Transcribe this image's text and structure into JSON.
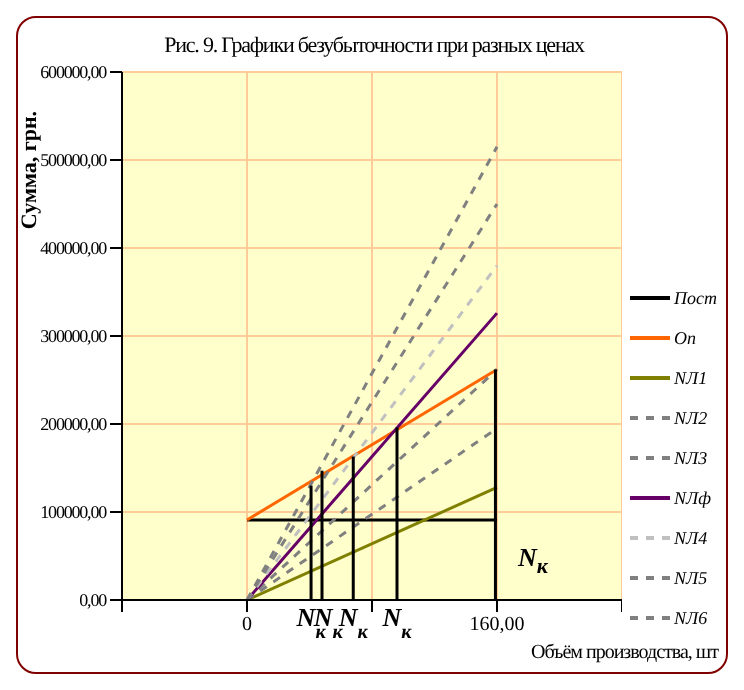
{
  "chart_data": {
    "type": "line",
    "title": "Рис. 9. Графики безубыточности при разных ценах",
    "xlabel": "Объём производства, шт",
    "ylabel": "Сумма, грн.",
    "xlim": [
      -80,
      240
    ],
    "xticks": [
      {
        "value": -80,
        "label": null
      },
      {
        "value": 0,
        "label": "0"
      },
      {
        "value": 80,
        "label": null
      },
      {
        "value": 160,
        "label": "160,00"
      },
      {
        "value": 240,
        "label": null
      }
    ],
    "ylim": [
      0,
      600000
    ],
    "yticks": [
      {
        "value": 0,
        "label": "0,00"
      },
      {
        "value": 100000,
        "label": "100000,00"
      },
      {
        "value": 200000,
        "label": "200000,00"
      },
      {
        "value": 300000,
        "label": "300000,00"
      },
      {
        "value": 400000,
        "label": "400000,00"
      },
      {
        "value": 500000,
        "label": "500000,00"
      },
      {
        "value": 600000,
        "label": "600000,00"
      }
    ],
    "grid": true,
    "legend": "right",
    "marker": "none",
    "series": [
      {
        "name": "Пост",
        "color": "#000000",
        "x": [
          0,
          160
        ],
        "values": [
          91000,
          91000
        ],
        "line_style": "solid"
      },
      {
        "name": "Оп",
        "color": "#ff6600",
        "x": [
          0,
          160
        ],
        "values": [
          91000,
          262000
        ],
        "line_style": "solid"
      },
      {
        "name": "NЛ1",
        "color": "#808000",
        "x": [
          0,
          160
        ],
        "values": [
          0,
          128000
        ],
        "line_style": "solid"
      },
      {
        "name": "NЛ2",
        "color": "#808080",
        "x": [
          0,
          160
        ],
        "values": [
          0,
          195000
        ],
        "line_style": "dashed"
      },
      {
        "name": "NЛ3",
        "color": "#808080",
        "x": [
          0,
          160
        ],
        "values": [
          0,
          262000
        ],
        "line_style": "dashed"
      },
      {
        "name": "NЛф",
        "color": "#660066",
        "x": [
          0,
          160
        ],
        "values": [
          0,
          326000
        ],
        "line_style": "solid"
      },
      {
        "name": "NЛ4",
        "color": "#c0c0c0",
        "x": [
          0,
          160
        ],
        "values": [
          0,
          380000
        ],
        "line_style": "dashed"
      },
      {
        "name": "NЛ5",
        "color": "#808080",
        "x": [
          0,
          160
        ],
        "values": [
          0,
          450000
        ],
        "line_style": "dashed"
      },
      {
        "name": "NЛ6",
        "color": "#808080",
        "x": [
          0,
          160
        ],
        "values": [
          0,
          515000
        ],
        "line_style": "dashed"
      },
      {
        "color": "#000000",
        "x": [
          41,
          41
        ],
        "values": [
          0,
          130000
        ],
        "line_style": "solid"
      },
      {
        "color": "#000000",
        "x": [
          48,
          48
        ],
        "values": [
          0,
          147000
        ],
        "line_style": "solid"
      },
      {
        "color": "#000000",
        "x": [
          68,
          68
        ],
        "values": [
          0,
          163000
        ],
        "line_style": "solid"
      },
      {
        "color": "#000000",
        "x": [
          96,
          96
        ],
        "values": [
          0,
          196000
        ],
        "line_style": "solid"
      },
      {
        "color": "#000000",
        "x": [
          159,
          159
        ],
        "values": [
          0,
          262000
        ],
        "line_style": "solid"
      }
    ],
    "annotations": [
      {
        "text": "N$_{к}$",
        "x": 41,
        "y": 0
      },
      {
        "text": "N$_{к}$",
        "x": 52,
        "y": 0
      },
      {
        "text": "N$_{к}$",
        "x": 68,
        "y": 0
      },
      {
        "text": "N$_{к}$",
        "x": 96,
        "y": 0
      },
      "N$_{к}$"
    ]
  }
}
